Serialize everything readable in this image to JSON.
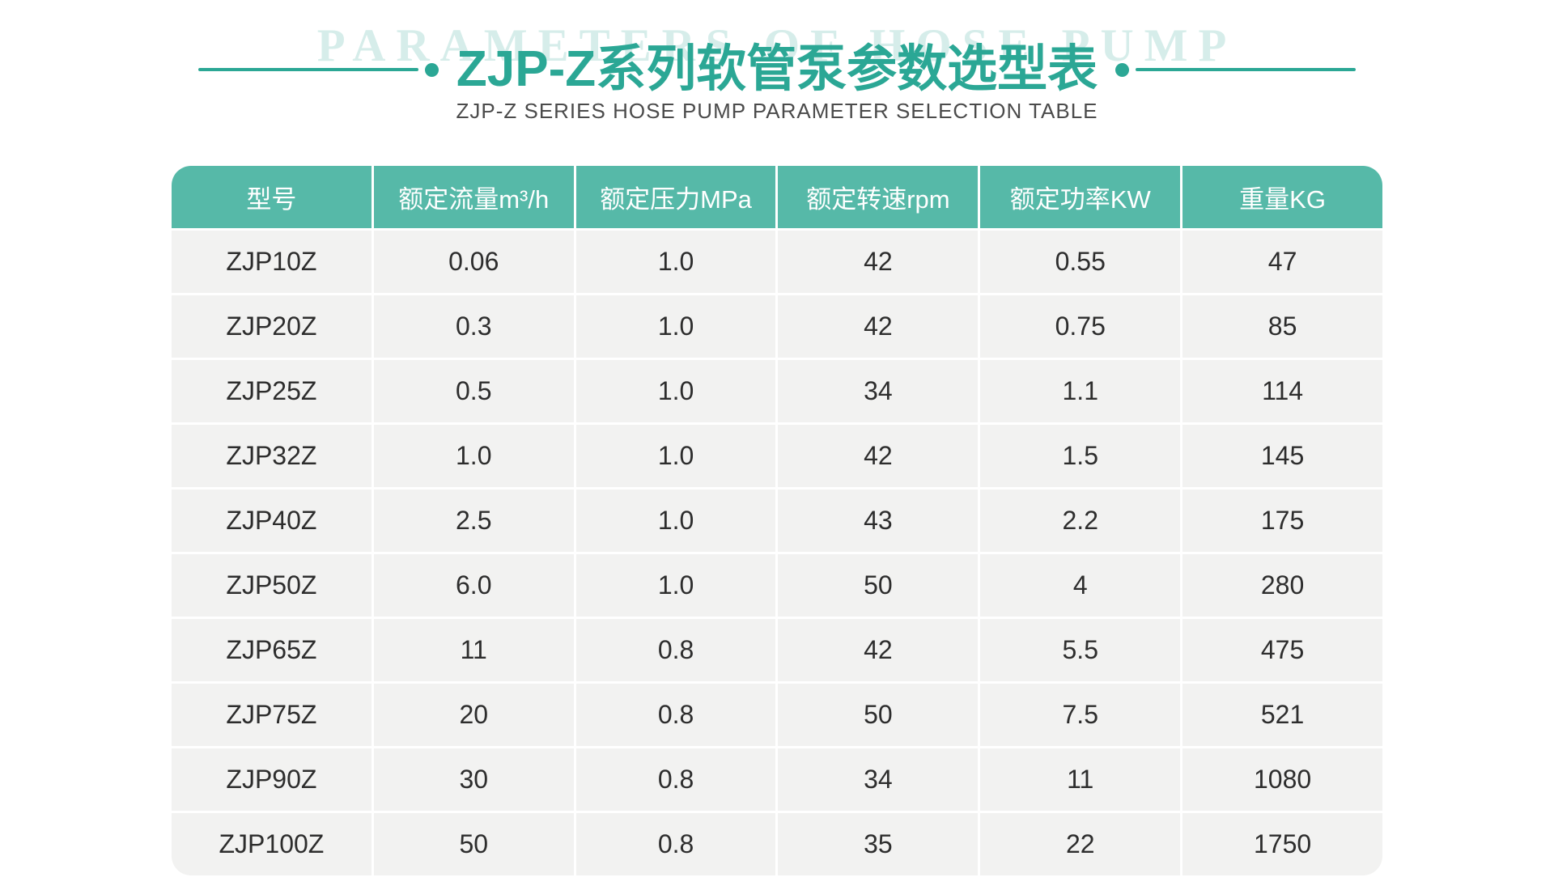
{
  "header": {
    "watermark": "PARAMETERS OF HOSE PUMP",
    "title": "ZJP-Z系列软管泵参数选型表",
    "subtitle": "ZJP-Z SERIES HOSE PUMP PARAMETER SELECTION TABLE"
  },
  "colors": {
    "accent_teal": "#2ba795",
    "table_header_bg": "#56b9a8",
    "table_header_text": "#ffffff",
    "table_row_bg": "#f2f2f1",
    "table_row_text": "#2d2d2d",
    "watermark_text": "#d6edea",
    "subtitle_text": "#4b4b4b"
  },
  "chart_data": {
    "type": "table",
    "title": "ZJP-Z系列软管泵参数选型表",
    "subtitle": "ZJP-Z SERIES HOSE PUMP PARAMETER SELECTION TABLE",
    "columns": [
      "型号",
      "额定流量m³/h",
      "额定压力MPa",
      "额定转速rpm",
      "额定功率KW",
      "重量KG"
    ],
    "rows": [
      [
        "ZJP10Z",
        "0.06",
        "1.0",
        "42",
        "0.55",
        "47"
      ],
      [
        "ZJP20Z",
        "0.3",
        "1.0",
        "42",
        "0.75",
        "85"
      ],
      [
        "ZJP25Z",
        "0.5",
        "1.0",
        "34",
        "1.1",
        "114"
      ],
      [
        "ZJP32Z",
        "1.0",
        "1.0",
        "42",
        "1.5",
        "145"
      ],
      [
        "ZJP40Z",
        "2.5",
        "1.0",
        "43",
        "2.2",
        "175"
      ],
      [
        "ZJP50Z",
        "6.0",
        "1.0",
        "50",
        "4",
        "280"
      ],
      [
        "ZJP65Z",
        "11",
        "0.8",
        "42",
        "5.5",
        "475"
      ],
      [
        "ZJP75Z",
        "20",
        "0.8",
        "50",
        "7.5",
        "521"
      ],
      [
        "ZJP90Z",
        "30",
        "0.8",
        "34",
        "11",
        "1080"
      ],
      [
        "ZJP100Z",
        "50",
        "0.8",
        "35",
        "22",
        "1750"
      ]
    ]
  }
}
